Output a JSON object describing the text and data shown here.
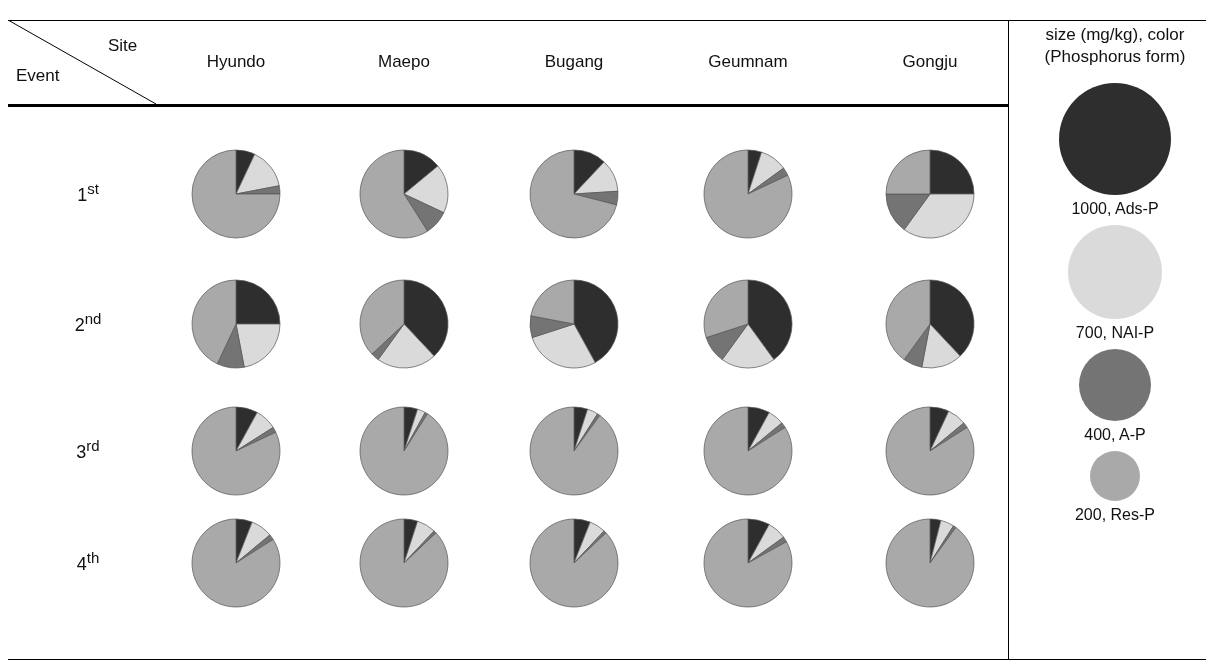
{
  "chart_data": [
    {
      "type": "other",
      "xlabel": "Site",
      "ylabel": "Event",
      "categories": [
        "Hyundo",
        "Maepo",
        "Bugang",
        "Geumnam",
        "Gongju"
      ],
      "y_categories": [
        "1$^{st}$",
        "2$^{nd}$",
        "3$^{rd}$",
        "4$^{th}$"
      ]
    },
    {
      "type": "pie",
      "categories": [
        null,
        null,
        null,
        null
      ],
      "values": [
        7,
        15,
        3,
        75
      ],
      "colors": [
        "#2e2e2e",
        "#dadada",
        "#747474",
        "#a9a9a9"
      ]
    },
    {
      "type": "pie",
      "categories": [
        null,
        null,
        null,
        null
      ],
      "values": [
        14,
        18,
        9,
        59
      ],
      "colors": [
        "#2e2e2e",
        "#dadada",
        "#747474",
        "#a9a9a9"
      ]
    },
    {
      "type": "pie",
      "categories": [
        null,
        null,
        null,
        null
      ],
      "values": [
        12,
        12,
        5,
        71
      ],
      "colors": [
        "#2e2e2e",
        "#dadada",
        "#747474",
        "#a9a9a9"
      ]
    },
    {
      "type": "pie",
      "categories": [
        null,
        null,
        null,
        null
      ],
      "values": [
        5,
        10,
        3,
        82
      ],
      "colors": [
        "#2e2e2e",
        "#dadada",
        "#747474",
        "#a9a9a9"
      ]
    },
    {
      "type": "pie",
      "categories": [
        null,
        null,
        null,
        null
      ],
      "values": [
        25,
        35,
        15,
        25
      ],
      "colors": [
        "#2e2e2e",
        "#dadada",
        "#747474",
        "#a9a9a9"
      ]
    },
    {
      "type": "pie",
      "categories": [
        null,
        null,
        null,
        null
      ],
      "values": [
        25,
        22,
        10,
        43
      ],
      "colors": [
        "#2e2e2e",
        "#dadada",
        "#747474",
        "#a9a9a9"
      ]
    },
    {
      "type": "pie",
      "categories": [
        null,
        null,
        null,
        null
      ],
      "values": [
        38,
        22,
        3,
        37
      ],
      "colors": [
        "#2e2e2e",
        "#dadada",
        "#747474",
        "#a9a9a9"
      ]
    },
    {
      "type": "pie",
      "categories": [
        null,
        null,
        null,
        null
      ],
      "values": [
        42,
        28,
        8,
        22
      ],
      "colors": [
        "#2e2e2e",
        "#dadada",
        "#747474",
        "#a9a9a9"
      ]
    },
    {
      "type": "pie",
      "categories": [
        null,
        null,
        null,
        null
      ],
      "values": [
        40,
        20,
        10,
        30
      ],
      "colors": [
        "#2e2e2e",
        "#dadada",
        "#747474",
        "#a9a9a9"
      ]
    },
    {
      "type": "pie",
      "categories": [
        null,
        null,
        null,
        null
      ],
      "values": [
        38,
        15,
        7,
        40
      ],
      "colors": [
        "#2e2e2e",
        "#dadada",
        "#747474",
        "#a9a9a9"
      ]
    },
    {
      "type": "pie",
      "categories": [
        null,
        null,
        null,
        null
      ],
      "values": [
        8,
        8,
        2,
        82
      ],
      "colors": [
        "#2e2e2e",
        "#dadada",
        "#747474",
        "#a9a9a9"
      ]
    },
    {
      "type": "pie",
      "categories": [
        null,
        null,
        null,
        null
      ],
      "values": [
        5,
        3,
        1,
        91
      ],
      "colors": [
        "#2e2e2e",
        "#dadada",
        "#747474",
        "#a9a9a9"
      ]
    },
    {
      "type": "pie",
      "categories": [
        null,
        null,
        null,
        null
      ],
      "values": [
        5,
        4,
        1,
        90
      ],
      "colors": [
        "#2e2e2e",
        "#dadada",
        "#747474",
        "#a9a9a9"
      ]
    },
    {
      "type": "pie",
      "categories": [
        null,
        null,
        null,
        null
      ],
      "values": [
        8,
        6,
        2,
        84
      ],
      "colors": [
        "#2e2e2e",
        "#dadada",
        "#747474",
        "#a9a9a9"
      ]
    },
    {
      "type": "pie",
      "categories": [
        null,
        null,
        null,
        null
      ],
      "values": [
        7,
        7,
        2,
        84
      ],
      "colors": [
        "#2e2e2e",
        "#dadada",
        "#747474",
        "#a9a9a9"
      ]
    },
    {
      "type": "pie",
      "categories": [
        null,
        null,
        null,
        null
      ],
      "values": [
        6,
        8,
        2,
        84
      ],
      "colors": [
        "#2e2e2e",
        "#dadada",
        "#747474",
        "#a9a9a9"
      ]
    },
    {
      "type": "pie",
      "categories": [
        null,
        null,
        null,
        null
      ],
      "values": [
        5,
        7,
        1,
        87
      ],
      "colors": [
        "#2e2e2e",
        "#dadada",
        "#747474",
        "#a9a9a9"
      ]
    },
    {
      "type": "pie",
      "categories": [
        null,
        null,
        null,
        null
      ],
      "values": [
        6,
        6,
        1,
        87
      ],
      "colors": [
        "#2e2e2e",
        "#dadada",
        "#747474",
        "#a9a9a9"
      ]
    },
    {
      "type": "pie",
      "categories": [
        null,
        null,
        null,
        null
      ],
      "values": [
        8,
        7,
        2,
        83
      ],
      "colors": [
        "#2e2e2e",
        "#dadada",
        "#747474",
        "#a9a9a9"
      ]
    },
    {
      "type": "pie",
      "categories": [
        null,
        null,
        null,
        null
      ],
      "values": [
        4,
        5,
        1,
        90
      ],
      "colors": [
        "#2e2e2e",
        "#dadada",
        "#747474",
        "#a9a9a9"
      ]
    },
    {
      "type": "other",
      "title": "size (mg/kg), color (Phosphorus form)",
      "categories": [
        "1000, Ads-P",
        "700, NAI-P",
        "400, A-P",
        "200, Res-P"
      ],
      "colors": [
        "#2e2e2e",
        "#dadada",
        "#747474",
        "#a9a9a9"
      ]
    }
  ]
}
